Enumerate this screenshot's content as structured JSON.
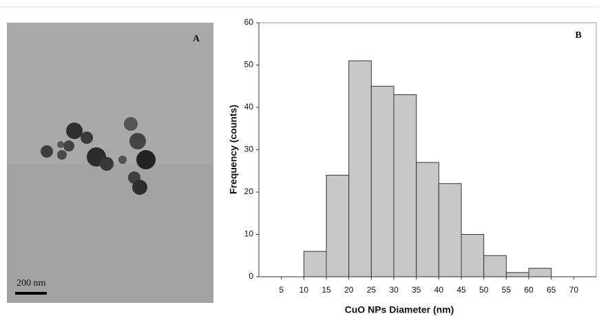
{
  "panel_a": {
    "label": "A",
    "scale_bar": "200 nm"
  },
  "chart_data": {
    "type": "histogram",
    "panel_label": "B",
    "x_label": "CuO NPs Diameter (nm)",
    "y_label": "Frequency (counts)",
    "bins": [
      10,
      15,
      20,
      25,
      30,
      35,
      40,
      45,
      50,
      55,
      60,
      65
    ],
    "counts": [
      6,
      24,
      51,
      45,
      43,
      27,
      22,
      10,
      5,
      1,
      2
    ],
    "color": "#c8c8c8",
    "xlim": [
      0,
      75
    ],
    "xticks": [
      5,
      10,
      15,
      20,
      25,
      30,
      35,
      40,
      45,
      50,
      55,
      60,
      65,
      70
    ],
    "ylim": [
      0,
      60
    ],
    "yticks": [
      0,
      10,
      20,
      30,
      40,
      50,
      60
    ]
  }
}
